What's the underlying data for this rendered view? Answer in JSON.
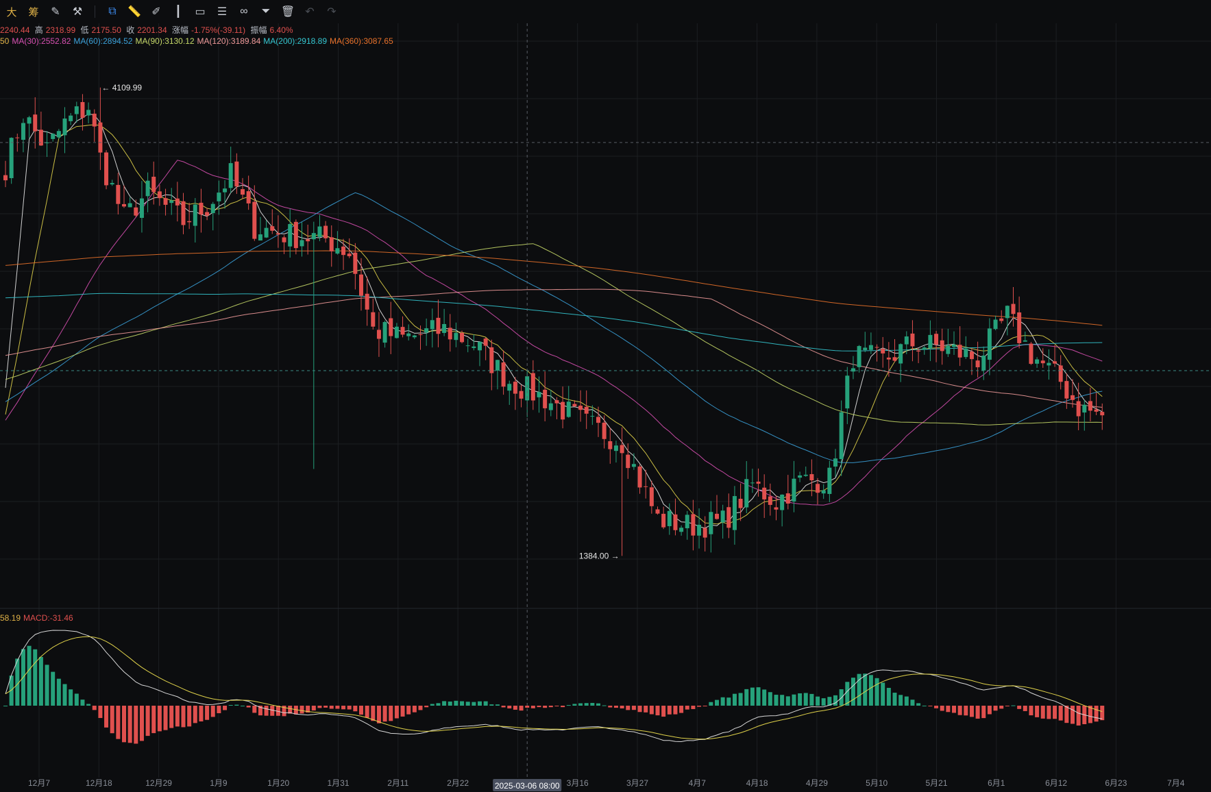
{
  "toolbar": {
    "items": [
      {
        "name": "indicator-text-big",
        "glyph": "大",
        "type": "text"
      },
      {
        "name": "indicator-text-chip",
        "glyph": "筹",
        "type": "text"
      },
      {
        "name": "edit-icon",
        "glyph": "✎"
      },
      {
        "name": "tool-icon",
        "glyph": "⚒"
      },
      {
        "name": "sep"
      },
      {
        "name": "copy-icon",
        "glyph": "⧉",
        "active": true
      },
      {
        "name": "ruler-icon",
        "glyph": "📏"
      },
      {
        "name": "pencil-icon",
        "glyph": "✐"
      },
      {
        "name": "candles-icon",
        "glyph": "┃"
      },
      {
        "name": "clipboard-icon",
        "glyph": "▭"
      },
      {
        "name": "notes-icon",
        "glyph": "☰"
      },
      {
        "name": "link-icon",
        "glyph": "∞"
      },
      {
        "name": "filter-icon",
        "glyph": "⏷"
      },
      {
        "name": "trash-icon",
        "glyph": "🗑"
      },
      {
        "name": "undo-icon",
        "glyph": "↶",
        "disabled": true
      },
      {
        "name": "redo-icon",
        "glyph": "↷",
        "disabled": true
      }
    ]
  },
  "price_legend": {
    "open_value": "2240.44",
    "high_label": "高",
    "high_value": "2318.99",
    "low_label": "低",
    "low_value": "2175.50",
    "close_label": "收",
    "close_value": "2201.34",
    "change_label": "涨幅",
    "change_value": "-1.75%(-39.11)",
    "amp_label": "振幅",
    "amp_value": "6.40%"
  },
  "ma_legend": [
    {
      "label": "50",
      "color": "#e0b247"
    },
    {
      "label": "MA(30):2552.82",
      "color": "#d64fb0"
    },
    {
      "label": "MA(60):2894.52",
      "color": "#3aa0d8"
    },
    {
      "label": "MA(90):3130.12",
      "color": "#c6d968"
    },
    {
      "label": "MA(120):3189.84",
      "color": "#f09a9a"
    },
    {
      "label": "MA(200):2918.89",
      "color": "#34c6d0"
    },
    {
      "label": "MA(360):3087.65",
      "color": "#e8712a"
    }
  ],
  "macd_legend": [
    {
      "label": "58.19",
      "color": "#e0b247"
    },
    {
      "label": "MACD:-31.46",
      "color": "#e0504e"
    }
  ],
  "annotations": {
    "high": "4109.99",
    "low": "1384.00"
  },
  "crosshair_label": "2025-03-06 08:00",
  "colors": {
    "up": "#26a17b",
    "down": "#e0504e",
    "bg": "#0c0d0f",
    "grid": "#1c1e22",
    "macd_line": "#d9d9d9",
    "signal_line": "#e0d24a"
  },
  "chart_data": {
    "type": "candlestick",
    "y_range": [
      1150,
      4460
    ],
    "x_labels": [
      "12月7",
      "12月18",
      "12月29",
      "1月9",
      "1月20",
      "1月31",
      "2月11",
      "2月22",
      "3月16",
      "3月27",
      "4月7",
      "4月18",
      "4月29",
      "5月10",
      "5月21",
      "6月1",
      "6月12",
      "6月23",
      "7月4"
    ],
    "anchors": [
      {
        "day": 0,
        "price": 3650
      },
      {
        "day": 3,
        "price": 3950
      },
      {
        "day": 7,
        "price": 3750
      },
      {
        "day": 10,
        "price": 3900
      },
      {
        "day": 14,
        "price": 4000
      },
      {
        "day": 16,
        "price": 3700
      },
      {
        "day": 20,
        "price": 3350
      },
      {
        "day": 24,
        "price": 3500
      },
      {
        "day": 30,
        "price": 3330
      },
      {
        "day": 34,
        "price": 3420
      },
      {
        "day": 38,
        "price": 3600
      },
      {
        "day": 42,
        "price": 3300
      },
      {
        "day": 48,
        "price": 3250
      },
      {
        "day": 54,
        "price": 3230
      },
      {
        "day": 58,
        "price": 3150
      },
      {
        "day": 62,
        "price": 2700
      },
      {
        "day": 67,
        "price": 2650
      },
      {
        "day": 74,
        "price": 2700
      },
      {
        "day": 79,
        "price": 2620
      },
      {
        "day": 85,
        "price": 2400
      },
      {
        "day": 91,
        "price": 2300
      },
      {
        "day": 98,
        "price": 2150
      },
      {
        "day": 104,
        "price": 2050
      },
      {
        "day": 110,
        "price": 1600
      },
      {
        "day": 115,
        "price": 1560
      },
      {
        "day": 121,
        "price": 1580
      },
      {
        "day": 126,
        "price": 1800
      },
      {
        "day": 130,
        "price": 1700
      },
      {
        "day": 134,
        "price": 1820
      },
      {
        "day": 139,
        "price": 1830
      },
      {
        "day": 143,
        "price": 2550
      },
      {
        "day": 148,
        "price": 2520
      },
      {
        "day": 153,
        "price": 2620
      },
      {
        "day": 158,
        "price": 2600
      },
      {
        "day": 164,
        "price": 2530
      },
      {
        "day": 169,
        "price": 2780
      },
      {
        "day": 173,
        "price": 2560
      },
      {
        "day": 178,
        "price": 2400
      },
      {
        "day": 181,
        "price": 2250
      },
      {
        "day": 185,
        "price": 2201
      }
    ]
  }
}
